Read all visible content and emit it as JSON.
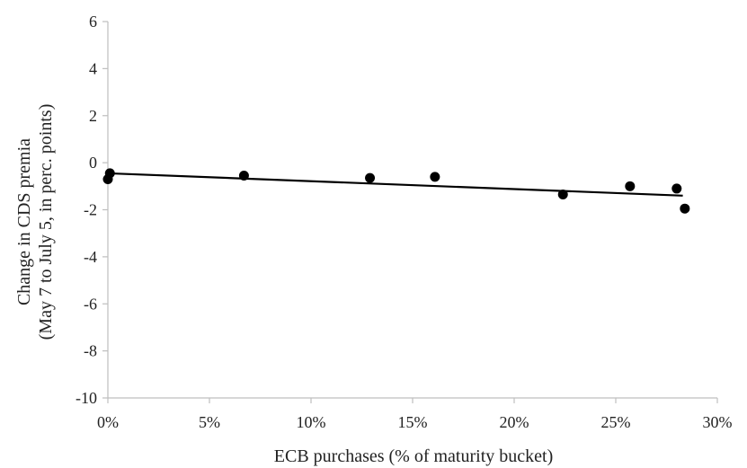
{
  "chart_data": {
    "type": "scatter",
    "xlabel": "ECB purchases (% of maturity bucket)",
    "ylabel_line1": "Change in CDS premia",
    "ylabel_line2": "(May 7 to July 5, in perc. points)",
    "xlim": [
      0,
      30
    ],
    "ylim": [
      -10,
      6
    ],
    "x_ticks": [
      0,
      5,
      10,
      15,
      20,
      25,
      30
    ],
    "x_tick_labels": [
      "0%",
      "5%",
      "10%",
      "15%",
      "20%",
      "25%",
      "30%"
    ],
    "y_ticks": [
      6,
      4,
      2,
      0,
      -2,
      -4,
      -6,
      -8,
      -10
    ],
    "y_tick_labels": [
      "6",
      "4",
      "2",
      "0",
      "-2",
      "-4",
      "-6",
      "-8",
      "-10"
    ],
    "grid": false,
    "points": [
      {
        "x": 0.0,
        "y": -0.7
      },
      {
        "x": 0.1,
        "y": -0.45
      },
      {
        "x": 6.7,
        "y": -0.55
      },
      {
        "x": 12.9,
        "y": -0.65
      },
      {
        "x": 16.1,
        "y": -0.6
      },
      {
        "x": 22.4,
        "y": -1.35
      },
      {
        "x": 25.7,
        "y": -1.0
      },
      {
        "x": 28.0,
        "y": -1.1
      },
      {
        "x": 28.4,
        "y": -1.95
      }
    ],
    "trendline": {
      "x": [
        0,
        28.3
      ],
      "y": [
        -0.45,
        -1.4
      ]
    },
    "colors": {
      "points": "#000000",
      "trendline": "#000000",
      "axis": "#bfbfbf"
    }
  }
}
